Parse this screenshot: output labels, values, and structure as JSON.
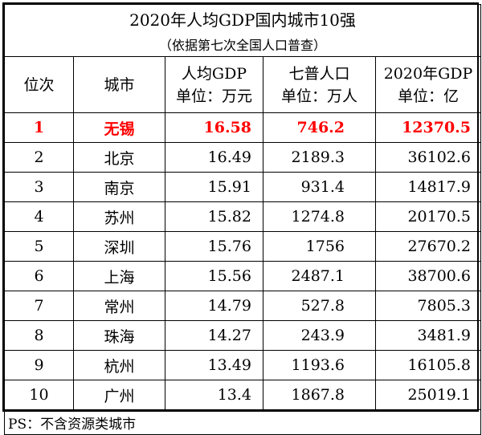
{
  "title": "2020年人均GDP国内城市10强",
  "subtitle": "（依据第七次全国人口普查）",
  "headers": {
    "rank": "位次",
    "city": "城市",
    "gdp_per_capita": [
      "人均GDP",
      "单位：万元"
    ],
    "population": [
      "七普人口",
      "单位：万人"
    ],
    "gdp_total": [
      "2020年GDP",
      "单位：亿"
    ]
  },
  "rows": [
    {
      "rank": "1",
      "city": "无锡",
      "gdp_per_capita": "16.58",
      "population": "746.2",
      "gdp_total": "12370.5"
    },
    {
      "rank": "2",
      "city": "北京",
      "gdp_per_capita": "16.49",
      "population": "2189.3",
      "gdp_total": "36102.6"
    },
    {
      "rank": "3",
      "city": "南京",
      "gdp_per_capita": "15.91",
      "population": "931.4",
      "gdp_total": "14817.9"
    },
    {
      "rank": "4",
      "city": "苏州",
      "gdp_per_capita": "15.82",
      "population": "1274.8",
      "gdp_total": "20170.5"
    },
    {
      "rank": "5",
      "city": "深圳",
      "gdp_per_capita": "15.76",
      "population": "1756",
      "gdp_total": "27670.2"
    },
    {
      "rank": "6",
      "city": "上海",
      "gdp_per_capita": "15.56",
      "population": "2487.1",
      "gdp_total": "38700.6"
    },
    {
      "rank": "7",
      "city": "常州",
      "gdp_per_capita": "14.79",
      "population": "527.8",
      "gdp_total": "7805.3"
    },
    {
      "rank": "8",
      "city": "珠海",
      "gdp_per_capita": "14.27",
      "population": "243.9",
      "gdp_total": "3481.9"
    },
    {
      "rank": "9",
      "city": "杭州",
      "gdp_per_capita": "13.49",
      "population": "1193.6",
      "gdp_total": "16105.8"
    },
    {
      "rank": "10",
      "city": "广州",
      "gdp_per_capita": "13.4",
      "population": "1867.8",
      "gdp_total": "25019.1"
    }
  ],
  "note": "PS：不含资源类城市",
  "colors": {
    "highlight": "#ff0000",
    "border": "#000000",
    "background": "#ffffff"
  }
}
